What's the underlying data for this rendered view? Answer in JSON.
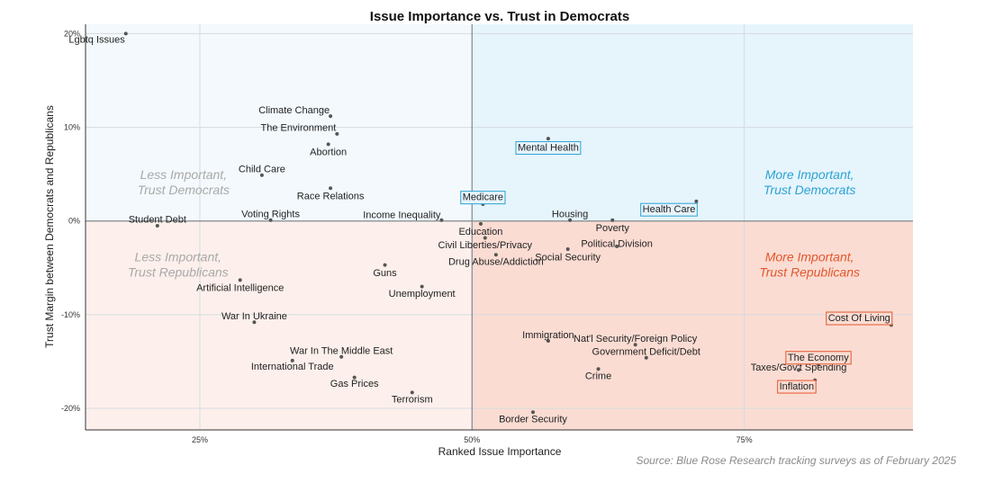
{
  "chart_data": {
    "type": "scatter",
    "title": "Issue Importance vs. Trust in Democrats",
    "xlabel": "Ranked Issue Importance",
    "ylabel": "Trust Margin between Democrats and Republicans",
    "xlim": [
      0.145,
      0.905
    ],
    "ylim": [
      -0.223,
      0.21
    ],
    "x_ticks": [
      {
        "v": 0.25,
        "label": "25%"
      },
      {
        "v": 0.5,
        "label": "50%"
      },
      {
        "v": 0.75,
        "label": "75%"
      }
    ],
    "y_ticks": [
      {
        "v": 0.2,
        "label": "20%"
      },
      {
        "v": 0.1,
        "label": "10%"
      },
      {
        "v": 0.0,
        "label": "0%"
      },
      {
        "v": -0.1,
        "label": "-10%"
      },
      {
        "v": -0.2,
        "label": "-20%"
      }
    ],
    "grid": true,
    "quadrant_labels": [
      {
        "text": [
          "Less Important,",
          "Trust Democrats"
        ],
        "quadrant": "top-left",
        "color": "#a9a9a9"
      },
      {
        "text": [
          "More Important,",
          "Trust Democrats"
        ],
        "quadrant": "top-right",
        "color": "#2ba3d4"
      },
      {
        "text": [
          "Less Important,",
          "Trust Republicans"
        ],
        "quadrant": "bottom-left",
        "color": "#a9a9a9"
      },
      {
        "text": [
          "More Important,",
          "Trust Republicans"
        ],
        "quadrant": "bottom-right",
        "color": "#e2572c"
      }
    ],
    "colors": {
      "dem_strong": "#e6f4fc",
      "dem_light": "#f3f9fd",
      "rep_strong": "#fbdcd3",
      "rep_light": "#fdf0ec",
      "dem_box": "#2ba3d4",
      "rep_box": "#e2572c"
    },
    "points": [
      {
        "label": "Lgbtq Issues",
        "x": 0.182,
        "y": 0.2,
        "lx": -1,
        "ly": -0.006
      },
      {
        "label": "Climate Change",
        "x": 0.37,
        "y": 0.112,
        "lx": -1,
        "ly": 0.007
      },
      {
        "label": "The Environment",
        "x": 0.376,
        "y": 0.093,
        "lx": -1,
        "ly": 0.007
      },
      {
        "label": "Abortion",
        "x": 0.368,
        "y": 0.082,
        "lx": 0,
        "ly": -0.008
      },
      {
        "label": "Child Care",
        "x": 0.307,
        "y": 0.049,
        "lx": 0,
        "ly": 0.007
      },
      {
        "label": "Race Relations",
        "x": 0.37,
        "y": 0.035,
        "lx": 0,
        "ly": -0.008
      },
      {
        "label": "Voting Rights",
        "x": 0.315,
        "y": 0.001,
        "lx": 0,
        "ly": 0.007
      },
      {
        "label": "Student Debt",
        "x": 0.211,
        "y": -0.005,
        "lx": 0,
        "ly": 0.007
      },
      {
        "label": "Income Inequality",
        "x": 0.472,
        "y": 0.001,
        "lx": -1,
        "ly": 0.006
      },
      {
        "label": "Mental Health",
        "x": 0.57,
        "y": 0.088,
        "lx": 0,
        "ly": -0.009,
        "box": "dem"
      },
      {
        "label": "Medicare",
        "x": 0.51,
        "y": 0.018,
        "lx": 0,
        "ly": 0.008,
        "box": "dem"
      },
      {
        "label": "Housing",
        "x": 0.59,
        "y": 0.001,
        "lx": 0,
        "ly": 0.007
      },
      {
        "label": "Health Care",
        "x": 0.706,
        "y": 0.021,
        "lx": -1,
        "ly": -0.008,
        "box": "dem"
      },
      {
        "label": "Poverty",
        "x": 0.629,
        "y": 0.001,
        "lx": 0,
        "ly": -0.008
      },
      {
        "label": "Education",
        "x": 0.508,
        "y": -0.003,
        "lx": 0,
        "ly": -0.008
      },
      {
        "label": "Civil Liberties/Privacy",
        "x": 0.512,
        "y": -0.018,
        "lx": 0,
        "ly": -0.007
      },
      {
        "label": "Drug Abuse/Addiction",
        "x": 0.522,
        "y": -0.036,
        "lx": 0,
        "ly": -0.007
      },
      {
        "label": "Political Division",
        "x": 0.633,
        "y": -0.027,
        "lx": 0,
        "ly": 0.003
      },
      {
        "label": "Social Security",
        "x": 0.588,
        "y": -0.03,
        "lx": 0,
        "ly": -0.008
      },
      {
        "label": "Guns",
        "x": 0.42,
        "y": -0.047,
        "lx": 0,
        "ly": -0.008
      },
      {
        "label": "Artificial Intelligence",
        "x": 0.287,
        "y": -0.063,
        "lx": 0,
        "ly": -0.008
      },
      {
        "label": "Unemployment",
        "x": 0.454,
        "y": -0.07,
        "lx": 0,
        "ly": -0.007
      },
      {
        "label": "War In Ukraine",
        "x": 0.3,
        "y": -0.108,
        "lx": 0,
        "ly": 0.007
      },
      {
        "label": "Cost Of Living",
        "x": 0.885,
        "y": -0.111,
        "lx": -1,
        "ly": 0.008,
        "box": "rep"
      },
      {
        "label": "Immigration",
        "x": 0.57,
        "y": -0.128,
        "lx": 0,
        "ly": 0.007
      },
      {
        "label": "Nat'l Security/Foreign Policy",
        "x": 0.65,
        "y": -0.132,
        "lx": 0,
        "ly": 0.007
      },
      {
        "label": "Government Deficit/Debt",
        "x": 0.66,
        "y": -0.146,
        "lx": 0,
        "ly": 0.007
      },
      {
        "label": "War In The Middle East",
        "x": 0.38,
        "y": -0.145,
        "lx": 0,
        "ly": 0.007
      },
      {
        "label": "International Trade",
        "x": 0.335,
        "y": -0.149,
        "lx": 0,
        "ly": -0.006
      },
      {
        "label": "Taxes/Gov't Spending",
        "x": 0.8,
        "y": -0.159,
        "lx": 0,
        "ly": 0.003
      },
      {
        "label": "The Economy",
        "x": 0.818,
        "y": -0.153,
        "lx": 0,
        "ly": 0.008,
        "box": "rep"
      },
      {
        "label": "Crime",
        "x": 0.616,
        "y": -0.158,
        "lx": 0,
        "ly": -0.007
      },
      {
        "label": "Inflation",
        "x": 0.815,
        "y": -0.17,
        "lx": -1,
        "ly": -0.006,
        "box": "rep"
      },
      {
        "label": "Gas Prices",
        "x": 0.392,
        "y": -0.167,
        "lx": 0,
        "ly": -0.006
      },
      {
        "label": "Terrorism",
        "x": 0.445,
        "y": -0.183,
        "lx": 0,
        "ly": -0.007
      },
      {
        "label": "Border Security",
        "x": 0.556,
        "y": -0.204,
        "lx": 0,
        "ly": -0.007
      }
    ],
    "source": "Source: Blue Rose Research tracking surveys as of February 2025"
  }
}
